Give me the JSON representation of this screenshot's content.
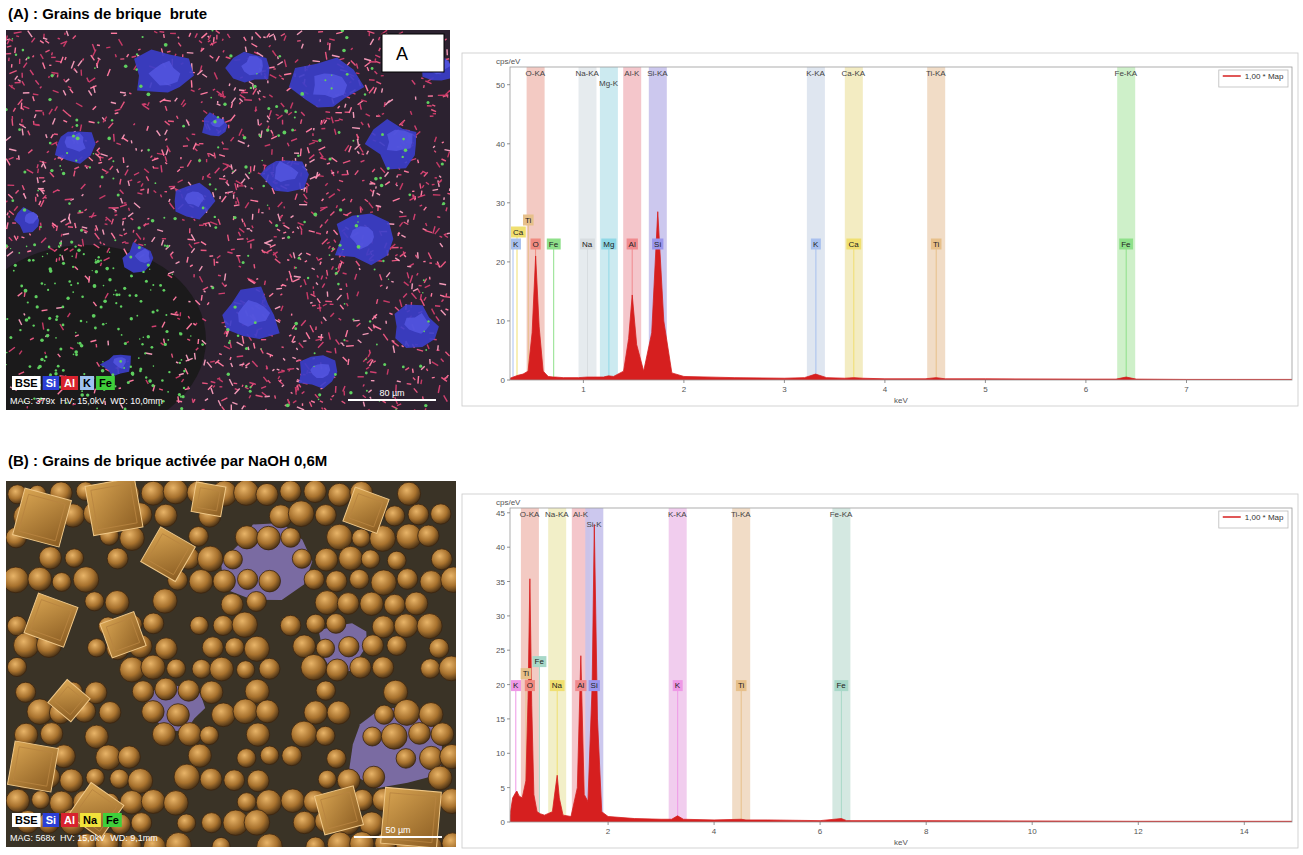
{
  "panels": [
    {
      "heading": "(A) : Grains de brique  brute",
      "letter": "A",
      "image": {
        "legend": [
          {
            "label": "BSE",
            "color": "#ffffff"
          },
          {
            "label": "Si",
            "color": "#2b3fd6"
          },
          {
            "label": "Al",
            "color": "#d8222e"
          },
          {
            "label": "K",
            "color": "#9fc3f0"
          },
          {
            "label": "Fe",
            "color": "#3fcf3a"
          }
        ],
        "caption": "MAG: 379x  HV: 15,0kV  WD: 10,0mm",
        "scale_bar": "80 µm"
      }
    },
    {
      "heading": "(B) : Grains de brique activée par NaOH 0,6M",
      "image": {
        "legend": [
          {
            "label": "BSE",
            "color": "#ffffff"
          },
          {
            "label": "Si",
            "color": "#2b3fd6"
          },
          {
            "label": "Al",
            "color": "#d8222e"
          },
          {
            "label": "Na",
            "color": "#f2e23a"
          },
          {
            "label": "Fe",
            "color": "#3fcf3a"
          }
        ],
        "caption": "MAG: 568x  HV: 15,0kV  WD: 9,1mm",
        "scale_bar": "50 µm"
      }
    }
  ],
  "chart_data": [
    {
      "type": "line",
      "x_label": "keV",
      "y_label": "cps/eV",
      "legend": "upper right",
      "grid": false,
      "xlim": [
        0.27,
        8.05
      ],
      "xticks": [
        1,
        2,
        3,
        4,
        5,
        6,
        7
      ],
      "ylim": [
        0,
        53
      ],
      "yticks": [
        0,
        10,
        20,
        30,
        40,
        50
      ],
      "x": [
        0.27,
        0.35,
        0.4,
        0.45,
        0.49,
        0.525,
        0.56,
        0.6,
        0.65,
        0.7,
        0.72,
        0.8,
        0.95,
        1.04,
        1.1,
        1.2,
        1.25,
        1.3,
        1.4,
        1.45,
        1.486,
        1.53,
        1.6,
        1.68,
        1.74,
        1.8,
        1.88,
        2.0,
        2.5,
        3.0,
        3.2,
        3.31,
        3.42,
        3.6,
        3.69,
        3.78,
        4.0,
        4.4,
        4.51,
        4.6,
        5.0,
        6.0,
        6.3,
        6.4,
        6.5,
        7.0,
        7.5,
        8.05
      ],
      "series": [
        {
          "name": "1,00 * Map",
          "color": "#d61f1f",
          "values": [
            0.3,
            0.8,
            1.0,
            1.5,
            8,
            21,
            9,
            1.5,
            0.6,
            0.5,
            0.5,
            0.4,
            0.4,
            0.5,
            0.5,
            0.5,
            0.7,
            0.6,
            1.5,
            7,
            14.4,
            6,
            1.5,
            8,
            28.5,
            10,
            1.2,
            0.6,
            0.4,
            0.3,
            0.4,
            1.0,
            0.4,
            0.3,
            0.4,
            0.3,
            0.2,
            0.2,
            0.4,
            0.2,
            0.2,
            0.15,
            0.15,
            0.5,
            0.15,
            0.1,
            0.1,
            0.1
          ]
        }
      ],
      "bands": [
        {
          "label": "O-KA",
          "x": 0.525,
          "color": "#f2c4bd"
        },
        {
          "label": "Na-KA",
          "x": 1.041,
          "color": "#e3e9ec"
        },
        {
          "label": "Mg-K",
          "x": 1.254,
          "color": "#c6e8ee"
        },
        {
          "label": "Al-K",
          "x": 1.486,
          "color": "#f3c0c5"
        },
        {
          "label": "Si-KA",
          "x": 1.74,
          "color": "#c6c2ec"
        },
        {
          "label": "K-KA",
          "x": 3.313,
          "color": "#dbe3ee"
        },
        {
          "label": "Ca-KA",
          "x": 3.69,
          "color": "#f2eabb"
        },
        {
          "label": "Ti-KA",
          "x": 4.51,
          "color": "#efd8c0"
        },
        {
          "label": "Fe-KA",
          "x": 6.4,
          "color": "#c9eec3"
        }
      ],
      "markers": [
        {
          "label": "K",
          "x": 0.3,
          "color": "#a9c0ee"
        },
        {
          "label": "Ca",
          "x": 0.34,
          "color": "#f0df70"
        },
        {
          "label": "Ti",
          "x": 0.452,
          "color": "#e7c08a"
        },
        {
          "label": "O",
          "x": 0.525,
          "color": "#f08a80"
        },
        {
          "label": "Fe",
          "x": 0.705,
          "color": "#8fe08a"
        },
        {
          "label": "Na",
          "x": 1.041,
          "color": "#d8dde0"
        },
        {
          "label": "Mg",
          "x": 1.254,
          "color": "#8fd8e6"
        },
        {
          "label": "Al",
          "x": 1.486,
          "color": "#f08a8e"
        },
        {
          "label": "Si",
          "x": 1.74,
          "color": "#9a96ec"
        },
        {
          "label": "K",
          "x": 3.313,
          "color": "#a9c0ee"
        },
        {
          "label": "Ca",
          "x": 3.69,
          "color": "#f0df70"
        },
        {
          "label": "Ti",
          "x": 4.51,
          "color": "#e7c08a"
        },
        {
          "label": "Fe",
          "x": 6.4,
          "color": "#8fe08a"
        }
      ]
    },
    {
      "type": "line",
      "x_label": "keV",
      "y_label": "cps/eV",
      "legend": "upper right",
      "grid": false,
      "xlim": [
        0.15,
        14.9
      ],
      "xticks": [
        2,
        4,
        6,
        8,
        10,
        12,
        14
      ],
      "ylim": [
        0,
        45.7
      ],
      "yticks": [
        0,
        5,
        10,
        15,
        20,
        25,
        30,
        35,
        40,
        45
      ],
      "x": [
        0.15,
        0.2,
        0.25,
        0.28,
        0.32,
        0.38,
        0.45,
        0.49,
        0.525,
        0.56,
        0.6,
        0.66,
        0.72,
        0.8,
        0.95,
        1.0,
        1.04,
        1.08,
        1.15,
        1.3,
        1.42,
        1.486,
        1.55,
        1.62,
        1.7,
        1.74,
        1.8,
        1.88,
        2.0,
        2.5,
        3.0,
        3.2,
        3.31,
        3.42,
        4.0,
        4.51,
        4.6,
        5.0,
        6.0,
        6.4,
        6.5,
        8.0,
        10.0,
        12.0,
        14.9
      ],
      "series": [
        {
          "name": "1,00 * Map",
          "color": "#d61f1f",
          "values": [
            1.0,
            3.5,
            4.2,
            4.5,
            3.8,
            3.5,
            6,
            18,
            35.4,
            17,
            4,
            1.5,
            1.2,
            1.0,
            1.5,
            4.5,
            6.8,
            3.5,
            1.0,
            0.8,
            5,
            24.2,
            4,
            3,
            20,
            43.3,
            15,
            1.5,
            0.8,
            0.5,
            0.4,
            0.4,
            0.9,
            0.4,
            0.3,
            0.4,
            0.3,
            0.3,
            0.2,
            0.5,
            0.2,
            0.2,
            0.15,
            0.1,
            0.1
          ]
        }
      ],
      "bands": [
        {
          "label": "O-KA",
          "x": 0.525,
          "color": "#f2c4bd"
        },
        {
          "label": "Na-KA",
          "x": 1.041,
          "color": "#f1edc2"
        },
        {
          "label": "Al-K",
          "x": 1.486,
          "color": "#f3c0c5"
        },
        {
          "label": "Si-K",
          "x": 1.74,
          "color": "#c6c2ec"
        },
        {
          "label": "K-KA",
          "x": 3.313,
          "color": "#f0c8ec"
        },
        {
          "label": "Ti-KA",
          "x": 4.51,
          "color": "#efd8c0"
        },
        {
          "label": "Fe-KA",
          "x": 6.4,
          "color": "#cfe6de"
        }
      ],
      "markers": [
        {
          "label": "K",
          "x": 0.26,
          "color": "#ee98e6"
        },
        {
          "label": "Ti",
          "x": 0.452,
          "color": "#e7c08a"
        },
        {
          "label": "O",
          "x": 0.525,
          "color": "#f08a80"
        },
        {
          "label": "Fe",
          "x": 0.705,
          "color": "#a8d8c8"
        },
        {
          "label": "Na",
          "x": 1.041,
          "color": "#f0df70"
        },
        {
          "label": "Al",
          "x": 1.486,
          "color": "#f08a8e"
        },
        {
          "label": "Si",
          "x": 1.74,
          "color": "#9a96ec"
        },
        {
          "label": "K",
          "x": 3.313,
          "color": "#ee98e6"
        },
        {
          "label": "Ti",
          "x": 4.51,
          "color": "#e7c08a"
        },
        {
          "label": "Fe",
          "x": 6.4,
          "color": "#a8d8c8"
        }
      ]
    }
  ]
}
